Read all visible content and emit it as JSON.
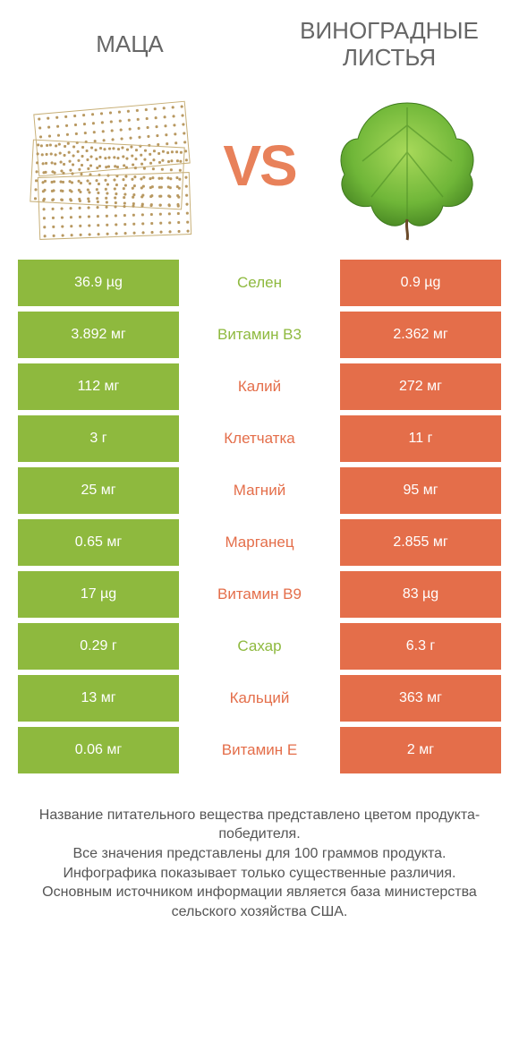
{
  "colors": {
    "green": "#8eb93e",
    "orange": "#e46e4a",
    "label_green": "#8eb93e",
    "label_orange": "#e46e4a"
  },
  "header": {
    "left_title": "МАЦА",
    "right_title": "ВИНОГРАДНЫЕ ЛИСТЬЯ",
    "vs": "VS"
  },
  "rows": [
    {
      "left": "36.9 µg",
      "label": "Селен",
      "right": "0.9 µg",
      "winner": "left"
    },
    {
      "left": "3.892 мг",
      "label": "Витамин B3",
      "right": "2.362 мг",
      "winner": "left"
    },
    {
      "left": "112 мг",
      "label": "Калий",
      "right": "272 мг",
      "winner": "right"
    },
    {
      "left": "3 г",
      "label": "Клетчатка",
      "right": "11 г",
      "winner": "right"
    },
    {
      "left": "25 мг",
      "label": "Магний",
      "right": "95 мг",
      "winner": "right"
    },
    {
      "left": "0.65 мг",
      "label": "Марганец",
      "right": "2.855 мг",
      "winner": "right"
    },
    {
      "left": "17 µg",
      "label": "Витамин B9",
      "right": "83 µg",
      "winner": "right"
    },
    {
      "left": "0.29 г",
      "label": "Сахар",
      "right": "6.3 г",
      "winner": "left"
    },
    {
      "left": "13 мг",
      "label": "Кальций",
      "right": "363 мг",
      "winner": "right"
    },
    {
      "left": "0.06 мг",
      "label": "Витамин E",
      "right": "2 мг",
      "winner": "right"
    }
  ],
  "footer": {
    "line1": "Название питательного вещества представлено цветом продукта-победителя.",
    "line2": "Все значения представлены для 100 граммов продукта.",
    "line3": "Инфографика показывает только существенные различия.",
    "line4": "Основным источником информации является база министерства сельского хозяйства США."
  }
}
